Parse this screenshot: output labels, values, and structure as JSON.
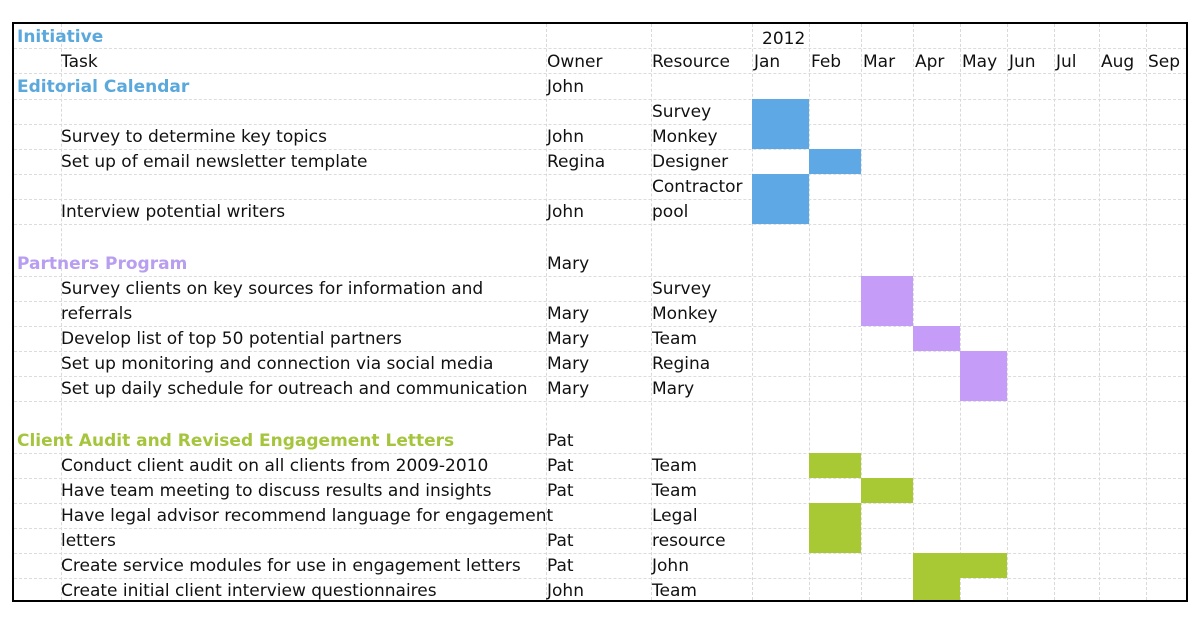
{
  "header": {
    "initiative_label": "Initiative",
    "year": "2012",
    "task_label": "Task",
    "owner_label": "Owner",
    "resource_label": "Resource",
    "months": [
      "Jan",
      "Feb",
      "Mar",
      "Apr",
      "May",
      "Jun",
      "Jul",
      "Aug",
      "Sep"
    ]
  },
  "sections": [
    {
      "title": "Editorial Calendar",
      "owner": "John",
      "color": "#5aa8dc",
      "bar_color": "#5ea8e6",
      "tasks": [
        {
          "line1": "",
          "line2": "Survey to determine key topics",
          "owner": "John",
          "res1": "Survey",
          "res2": "Monkey"
        },
        {
          "line1": "",
          "line2": "Set up of email newsletter template",
          "owner": "Regina",
          "res1": "",
          "res2": "Designer"
        },
        {
          "line1": "",
          "line2": "Interview potential writers",
          "owner": "John",
          "res1": "Contractor",
          "res2": "pool"
        }
      ]
    },
    {
      "title": "Partners Program",
      "owner": "Mary",
      "color": "#b89ef0",
      "bar_color": "#c59cf7",
      "tasks": [
        {
          "line1": "Survey clients on key sources for information and",
          "line2": "referrals",
          "owner": "Mary",
          "res1": "Survey",
          "res2": "Monkey"
        },
        {
          "line1": "",
          "line2": "Develop list of top 50 potential partners",
          "owner": "Mary",
          "res1": "",
          "res2": "Team"
        },
        {
          "line1": "",
          "line2": "Set up monitoring and connection via social media",
          "owner": "Mary",
          "res1": "",
          "res2": "Regina"
        },
        {
          "line1": "",
          "line2": "Set up daily schedule for outreach and communication",
          "owner": "Mary",
          "res1": "",
          "res2": "Mary"
        }
      ]
    },
    {
      "title": "Client Audit and Revised Engagement Letters",
      "owner": "Pat",
      "color": "#a5c53d",
      "bar_color": "#a9c934",
      "tasks": [
        {
          "line1": "",
          "line2": "Conduct client audit on all clients from 2009-2010",
          "owner": "Pat",
          "res1": "",
          "res2": "Team"
        },
        {
          "line1": "",
          "line2": "Have team meeting to discuss results and insights",
          "owner": "Pat",
          "res1": "",
          "res2": "Team"
        },
        {
          "line1": "Have legal advisor recommend language for engagement",
          "line2": "letters",
          "owner": "Pat",
          "res1": "Legal",
          "res2": "resource"
        },
        {
          "line1": "",
          "line2": "Create service modules for use in engagement letters",
          "owner": "Pat",
          "res1": "",
          "res2": "John"
        },
        {
          "line1": "",
          "line2": "Create initial client interview questionnaires",
          "owner": "John",
          "res1": "",
          "res2": "Team"
        }
      ]
    }
  ],
  "schedule": [
    {
      "section": 0,
      "task": 0,
      "start_month": "Jan",
      "end_month": "Jan"
    },
    {
      "section": 0,
      "task": 1,
      "start_month": "Feb",
      "end_month": "Feb"
    },
    {
      "section": 0,
      "task": 2,
      "start_month": "Jan",
      "end_month": "Jan"
    },
    {
      "section": 1,
      "task": 0,
      "start_month": "Mar",
      "end_month": "Mar"
    },
    {
      "section": 1,
      "task": 1,
      "start_month": "Apr",
      "end_month": "Apr"
    },
    {
      "section": 1,
      "task": 2,
      "start_month": "May",
      "end_month": "May"
    },
    {
      "section": 1,
      "task": 3,
      "start_month": "May",
      "end_month": "May"
    },
    {
      "section": 2,
      "task": 0,
      "start_month": "Feb",
      "end_month": "Feb"
    },
    {
      "section": 2,
      "task": 1,
      "start_month": "Mar",
      "end_month": "Mar"
    },
    {
      "section": 2,
      "task": 2,
      "start_month": "Feb",
      "end_month": "Feb"
    },
    {
      "section": 2,
      "task": 3,
      "start_month": "Apr",
      "end_month": "May"
    },
    {
      "section": 2,
      "task": 4,
      "start_month": "Apr",
      "end_month": "Apr"
    }
  ]
}
